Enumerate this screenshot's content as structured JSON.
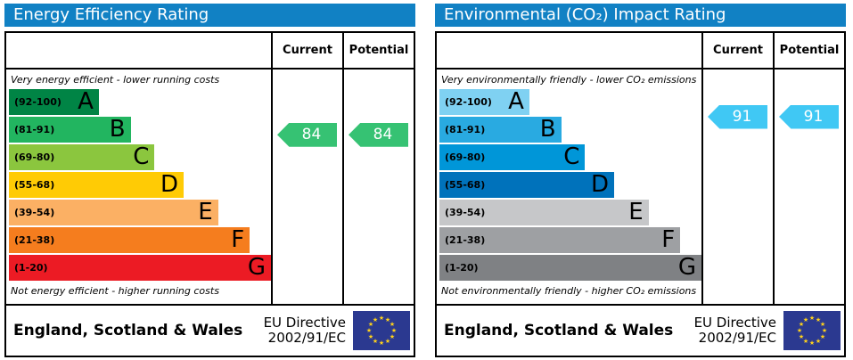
{
  "accent_blue": "#1181c4",
  "chart_data": [
    {
      "type": "bar",
      "title": "Energy Efficiency Rating",
      "header": {
        "current": "Current",
        "potential": "Potential"
      },
      "caption_top": "Very energy efficient - lower running costs",
      "caption_bottom": "Not energy efficient - higher running costs",
      "bands": [
        {
          "label": "A",
          "range": "(92-100)",
          "min": 92,
          "max": 100,
          "color": "#008445"
        },
        {
          "label": "B",
          "range": "(81-91)",
          "min": 81,
          "max": 91,
          "color": "#22b560"
        },
        {
          "label": "C",
          "range": "(69-80)",
          "min": 69,
          "max": 80,
          "color": "#8bc63e"
        },
        {
          "label": "D",
          "range": "(55-68)",
          "min": 55,
          "max": 68,
          "color": "#ffcb05"
        },
        {
          "label": "E",
          "range": "(39-54)",
          "min": 39,
          "max": 54,
          "color": "#fbb064"
        },
        {
          "label": "F",
          "range": "(21-38)",
          "min": 21,
          "max": 38,
          "color": "#f57d1e"
        },
        {
          "label": "G",
          "range": "(1-20)",
          "min": 1,
          "max": 20,
          "color": "#ec1b24"
        }
      ],
      "current": {
        "value": 84,
        "band": "B",
        "color": "#36c273"
      },
      "potential": {
        "value": 84,
        "band": "B",
        "color": "#36c273"
      }
    },
    {
      "type": "bar",
      "title": "Environmental (CO₂) Impact Rating",
      "header": {
        "current": "Current",
        "potential": "Potential"
      },
      "caption_top": "Very environmentally friendly - lower CO₂ emissions",
      "caption_bottom": "Not environmentally friendly - higher CO₂ emissions",
      "bands": [
        {
          "label": "A",
          "range": "(92-100)",
          "min": 92,
          "max": 100,
          "color": "#7fd1f2"
        },
        {
          "label": "B",
          "range": "(81-91)",
          "min": 81,
          "max": 91,
          "color": "#29aae1"
        },
        {
          "label": "C",
          "range": "(69-80)",
          "min": 69,
          "max": 80,
          "color": "#0096d8"
        },
        {
          "label": "D",
          "range": "(55-68)",
          "min": 55,
          "max": 68,
          "color": "#0072bb"
        },
        {
          "label": "E",
          "range": "(39-54)",
          "min": 39,
          "max": 54,
          "color": "#c6c7c9"
        },
        {
          "label": "F",
          "range": "(21-38)",
          "min": 21,
          "max": 38,
          "color": "#9ea0a3"
        },
        {
          "label": "G",
          "range": "(1-20)",
          "min": 1,
          "max": 20,
          "color": "#7f8184"
        }
      ],
      "current": {
        "value": 91,
        "band": "B",
        "color": "#40c8f4"
      },
      "potential": {
        "value": 91,
        "band": "B",
        "color": "#40c8f4"
      }
    }
  ],
  "footer": {
    "region": "England, Scotland & Wales",
    "directive_line1": "EU Directive",
    "directive_line2": "2002/91/EC",
    "flag_bg": "#2b3990",
    "flag_star_color": "#ffd21a"
  }
}
